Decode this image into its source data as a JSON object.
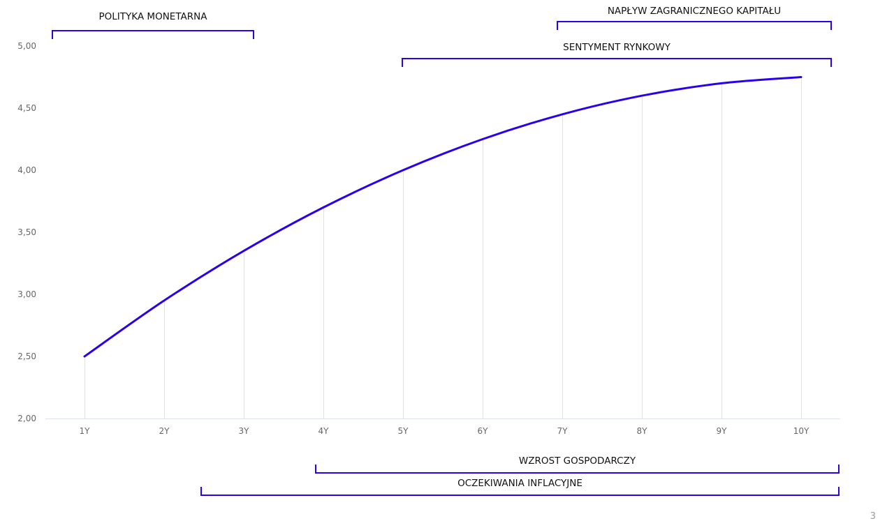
{
  "chart_data": {
    "type": "line",
    "title": "",
    "xlabel": "",
    "ylabel": "",
    "categories": [
      "1Y",
      "2Y",
      "3Y",
      "4Y",
      "5Y",
      "6Y",
      "7Y",
      "8Y",
      "9Y",
      "10Y"
    ],
    "values": [
      2.5,
      2.95,
      3.35,
      3.7,
      4.0,
      4.25,
      4.45,
      4.6,
      4.7,
      4.75
    ],
    "ylim": [
      2.0,
      5.0
    ],
    "yticks": [
      "2,00",
      "2,50",
      "3,00",
      "3,50",
      "4,00",
      "4,50",
      "5,00"
    ],
    "grid": "vertical drop lines at each point",
    "line_color": "#2a00ee",
    "annotations": [
      {
        "label": "POLITYKA MONETARNA"
      },
      {
        "label": "NAPŁYW ZAGRANICZNEGO KAPITAŁU"
      },
      {
        "label": "SENTYMENT RYNKOWY"
      },
      {
        "label": "WZROST GOSPODARCZY"
      },
      {
        "label": "OCZEKIWANIA INFLACYJNE"
      }
    ]
  },
  "page_number": "3"
}
